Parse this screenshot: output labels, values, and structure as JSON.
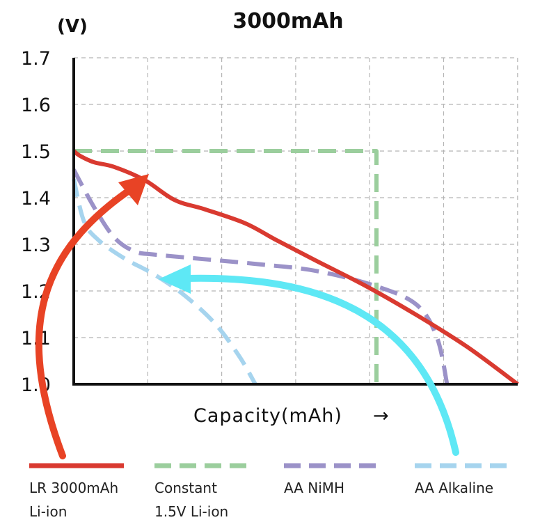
{
  "chart_data": {
    "type": "line",
    "title": "3000mAh",
    "y_unit": "(V)",
    "xlabel": "Capacity(mAh)",
    "xlabel_arrow": "→",
    "ylim": [
      1.0,
      1.7
    ],
    "y_ticks": [
      "1.7",
      "1.6",
      "1.5",
      "1.4",
      "1.3",
      "1.2",
      "1.1",
      "1.0"
    ],
    "grid": true,
    "legend_position": "bottom",
    "series": [
      {
        "name_lines": [
          "LR 3000mAh",
          "Li-ion"
        ],
        "color": "#d93a30",
        "dash": false,
        "points": [
          [
            0,
            1.5
          ],
          [
            0.3,
            1.49
          ],
          [
            1.0,
            1.476
          ],
          [
            2.0,
            1.466
          ],
          [
            3.5,
            1.438
          ],
          [
            5.0,
            1.395
          ],
          [
            6.5,
            1.375
          ],
          [
            8.5,
            1.345
          ],
          [
            10.0,
            1.31
          ],
          [
            12.0,
            1.265
          ],
          [
            14.5,
            1.21
          ],
          [
            17.0,
            1.148
          ],
          [
            19.5,
            1.08
          ],
          [
            22.0,
            1.0
          ]
        ]
      },
      {
        "name_lines": [
          "Constant",
          "1.5V Li-ion"
        ],
        "color": "#9bce9d",
        "dash": true,
        "points": [
          [
            0,
            1.5
          ],
          [
            15.0,
            1.5
          ],
          [
            15.0,
            1.0
          ]
        ]
      },
      {
        "name_lines": [
          "AA NiMH"
        ],
        "color": "#9b92c8",
        "dash": true,
        "points": [
          [
            0,
            1.46
          ],
          [
            1.0,
            1.38
          ],
          [
            2.0,
            1.315
          ],
          [
            3.0,
            1.285
          ],
          [
            4.0,
            1.278
          ],
          [
            6.0,
            1.27
          ],
          [
            9.0,
            1.258
          ],
          [
            12.0,
            1.243
          ],
          [
            15.0,
            1.21
          ],
          [
            17.0,
            1.17
          ],
          [
            18.0,
            1.1
          ],
          [
            18.5,
            1.0
          ]
        ]
      },
      {
        "name_lines": [
          "AA Alkaline"
        ],
        "color": "#a6d4ee",
        "dash": true,
        "points": [
          [
            0,
            1.44
          ],
          [
            0.5,
            1.35
          ],
          [
            1.2,
            1.31
          ],
          [
            2.5,
            1.27
          ],
          [
            4.0,
            1.235
          ],
          [
            5.5,
            1.19
          ],
          [
            7.0,
            1.13
          ],
          [
            8.2,
            1.06
          ],
          [
            9.0,
            1.0
          ]
        ]
      }
    ],
    "annotations": [
      {
        "kind": "arrow",
        "color": "#e84325",
        "target_series": "LR 3000mAh Li-ion"
      },
      {
        "kind": "arrow",
        "color": "#5ee8f5",
        "target_series": "AA Alkaline"
      }
    ]
  }
}
